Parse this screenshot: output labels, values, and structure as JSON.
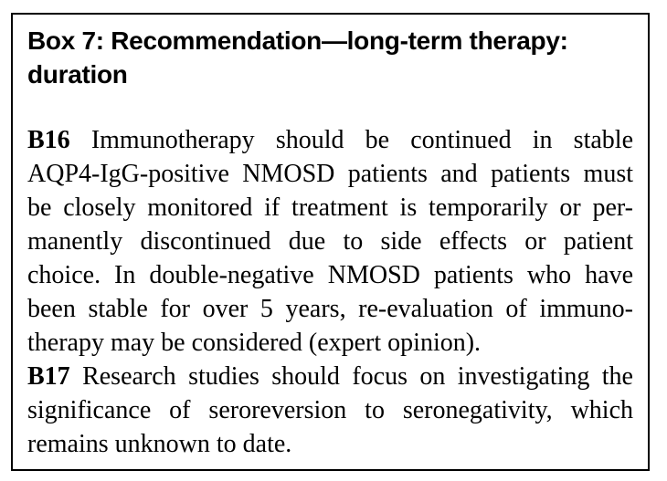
{
  "page": {
    "background_color": "#ffffff",
    "border_color": "#000000",
    "text_color": "#000000"
  },
  "box": {
    "title": "Box 7: Recommendation—long-term therapy: duration",
    "paragraphs": [
      {
        "label": "B16",
        "text": "Immunotherapy should be continued in stable AQP4-IgG-positive NMOSD patients and patients must be closely monitored if treatment is temporarily or permanently discontinued due to side effects or patient choice. In double-negative NMOSD patients who have been stable for over 5 years, re-evaluation of immunotherapy may be considered (expert opinion).",
        "lines": [
          "Immunotherapy should be continued in stable",
          "AQP4-IgG-positive NMOSD patients and patients must",
          "be closely monitored if treatment is temporarily or per-",
          "manently discontinued due to side effects or patient",
          "choice. In double-negative NMOSD patients who have",
          "been stable for over 5 years, re-evaluation of immuno-",
          "therapy may be considered (expert opinion)."
        ]
      },
      {
        "label": "B17",
        "text": "Research studies should focus on investigating the significance of seroreversion to seronegativity, which remains unknown to date.",
        "lines": [
          "Research studies should focus on investigating the",
          "significance of seroreversion to seronegativity, which",
          "remains unknown to date."
        ]
      }
    ]
  }
}
